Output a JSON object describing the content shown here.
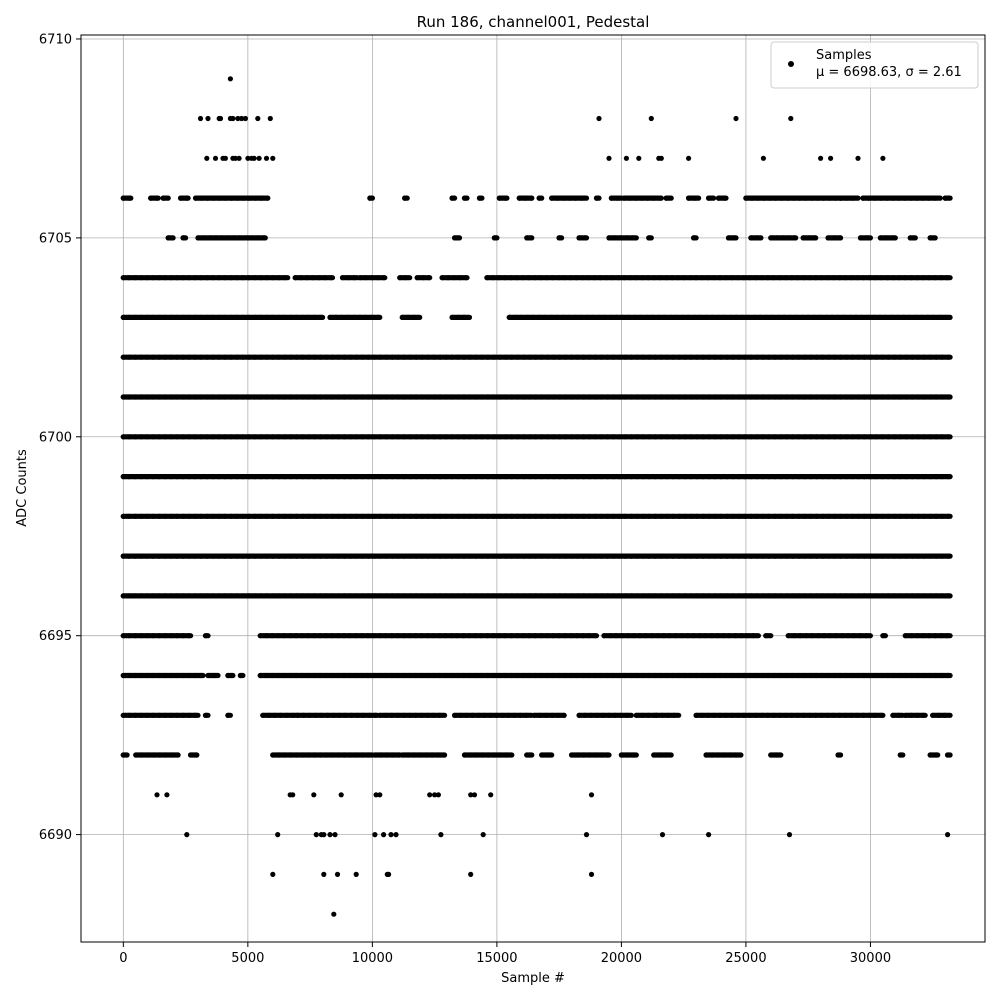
{
  "chart_data": {
    "type": "scatter",
    "title": "Run 186, channel001, Pedestal",
    "xlabel": "Sample #",
    "ylabel": "ADC Counts",
    "xlim": [
      -1700,
      34600
    ],
    "ylim": [
      6687.3,
      6710.1
    ],
    "xticks": [
      0,
      5000,
      10000,
      15000,
      20000,
      25000,
      30000
    ],
    "yticks": [
      6690,
      6695,
      6700,
      6705,
      6710
    ],
    "grid": true,
    "legend": {
      "placement": "top-right",
      "label": "Samples",
      "stats": "μ = 6698.63, σ = 2.61",
      "mu": 6698.63,
      "sigma": 2.61
    },
    "series": [
      {
        "marker": "dot",
        "color": "#000000",
        "x_range": [
          0,
          33200
        ],
        "bands": [
          {
            "y": 6688,
            "x": [
              8450
            ]
          },
          {
            "y": 6689,
            "x": [
              6000,
              8050,
              8600,
              9350,
              10600,
              10650,
              13950,
              18800
            ]
          },
          {
            "y": 6690,
            "x": [
              2550,
              6200,
              7750,
              7950,
              8050,
              8300,
              8500,
              10100,
              10450,
              10750,
              10950,
              12750,
              14450,
              18600,
              21650,
              23500,
              26750,
              33100
            ]
          },
          {
            "y": 6691,
            "x": [
              1350,
              1750,
              6700,
              6800,
              7650,
              8750,
              10150,
              10300,
              12300,
              12500,
              12650,
              13950,
              14100,
              14750,
              18800
            ]
          },
          {
            "y": 6692,
            "segments": [
              [
                0,
                150
              ],
              [
                500,
                2200
              ],
              [
                2700,
                2950
              ],
              [
                6000,
                10000
              ],
              [
                10100,
                11100
              ],
              [
                11200,
                12900
              ],
              [
                13700,
                15600
              ],
              [
                16200,
                16400
              ],
              [
                16800,
                17200
              ],
              [
                18000,
                19500
              ],
              [
                20000,
                20600
              ],
              [
                21300,
                22000
              ],
              [
                23400,
                24800
              ],
              [
                26000,
                26400
              ],
              [
                28700,
                28800
              ],
              [
                31200,
                31300
              ],
              [
                32400,
                32700
              ],
              [
                33100,
                33200
              ]
            ]
          },
          {
            "y": 6693,
            "segments": [
              [
                0,
                3000
              ],
              [
                3300,
                3400
              ],
              [
                4200,
                4300
              ],
              [
                5600,
                7000
              ],
              [
                7000,
                10200
              ],
              [
                10300,
                12900
              ],
              [
                13300,
                16400
              ],
              [
                16500,
                17700
              ],
              [
                18300,
                20400
              ],
              [
                20600,
                21400
              ],
              [
                21400,
                22300
              ],
              [
                23000,
                30500
              ],
              [
                30900,
                31300
              ],
              [
                31400,
                32200
              ],
              [
                32500,
                33200
              ]
            ]
          },
          {
            "y": 6694,
            "segments": [
              [
                0,
                3200
              ],
              [
                3400,
                3800
              ],
              [
                4200,
                4400
              ],
              [
                4700,
                4800
              ],
              [
                5500,
                33200
              ]
            ]
          },
          {
            "y": 6695,
            "segments": [
              [
                0,
                2700
              ],
              [
                3300,
                3400
              ],
              [
                5500,
                19000
              ],
              [
                19300,
                25500
              ],
              [
                25800,
                26000
              ],
              [
                26700,
                30000
              ],
              [
                30500,
                30600
              ],
              [
                31400,
                33200
              ]
            ]
          },
          {
            "y": 6696,
            "segments": [
              [
                0,
                33200
              ]
            ]
          },
          {
            "y": 6697,
            "segments": [
              [
                0,
                33200
              ]
            ]
          },
          {
            "y": 6698,
            "segments": [
              [
                0,
                33200
              ]
            ]
          },
          {
            "y": 6699,
            "segments": [
              [
                0,
                33200
              ]
            ]
          },
          {
            "y": 6700,
            "segments": [
              [
                0,
                33200
              ]
            ]
          },
          {
            "y": 6701,
            "segments": [
              [
                0,
                33200
              ]
            ]
          },
          {
            "y": 6702,
            "segments": [
              [
                0,
                33200
              ]
            ]
          },
          {
            "y": 6703,
            "segments": [
              [
                0,
                8000
              ],
              [
                8300,
                10300
              ],
              [
                11200,
                11900
              ],
              [
                13200,
                13900
              ],
              [
                15500,
                33200
              ]
            ]
          },
          {
            "y": 6704,
            "segments": [
              [
                0,
                6600
              ],
              [
                6900,
                8400
              ],
              [
                8800,
                9400
              ],
              [
                9500,
                10500
              ],
              [
                11100,
                11500
              ],
              [
                11800,
                12300
              ],
              [
                12800,
                13800
              ],
              [
                14600,
                33200
              ]
            ]
          },
          {
            "y": 6705,
            "segments": [
              [
                1800,
                2000
              ],
              [
                2400,
                2500
              ],
              [
                3000,
                5700
              ],
              [
                13300,
                13500
              ],
              [
                14900,
                15000
              ],
              [
                16200,
                16400
              ],
              [
                17500,
                17600
              ],
              [
                18300,
                18600
              ],
              [
                19500,
                20600
              ],
              [
                21100,
                21200
              ],
              [
                22900,
                23000
              ],
              [
                24300,
                24600
              ],
              [
                25200,
                25600
              ],
              [
                26000,
                27000
              ],
              [
                27300,
                27800
              ],
              [
                28300,
                28800
              ],
              [
                29600,
                30000
              ],
              [
                30400,
                31000
              ],
              [
                31600,
                31800
              ],
              [
                32400,
                32600
              ]
            ]
          },
          {
            "y": 6706,
            "segments": [
              [
                0,
                300
              ],
              [
                1100,
                1400
              ],
              [
                1600,
                1800
              ],
              [
                2300,
                2600
              ],
              [
                2900,
                5800
              ],
              [
                9900,
                10000
              ],
              [
                11300,
                11400
              ],
              [
                13200,
                13300
              ],
              [
                13700,
                13800
              ],
              [
                14300,
                14400
              ],
              [
                15100,
                15400
              ],
              [
                15900,
                16400
              ],
              [
                16700,
                16800
              ],
              [
                17200,
                18600
              ],
              [
                19000,
                19100
              ],
              [
                19600,
                20000
              ],
              [
                20100,
                21600
              ],
              [
                21800,
                22000
              ],
              [
                22700,
                23100
              ],
              [
                23500,
                23700
              ],
              [
                23900,
                24200
              ],
              [
                25000,
                28800
              ],
              [
                28800,
                29500
              ],
              [
                29700,
                32800
              ],
              [
                33000,
                33200
              ]
            ]
          },
          {
            "y": 6707,
            "x": [
              3350,
              3700,
              4000,
              4100,
              4400,
              4500,
              4650,
              5000,
              5150,
              5250,
              5450,
              5750,
              6000,
              19500,
              20200,
              20700,
              21500,
              21600,
              22700,
              25700,
              28000,
              28400,
              29500,
              30500
            ]
          },
          {
            "y": 6708,
            "x": [
              3100,
              3400,
              3850,
              3900,
              4300,
              4400,
              4600,
              4750,
              4900,
              5400,
              5900,
              19100,
              21200,
              24600,
              26800
            ]
          },
          {
            "y": 6709,
            "x": [
              4300
            ]
          }
        ]
      }
    ]
  }
}
